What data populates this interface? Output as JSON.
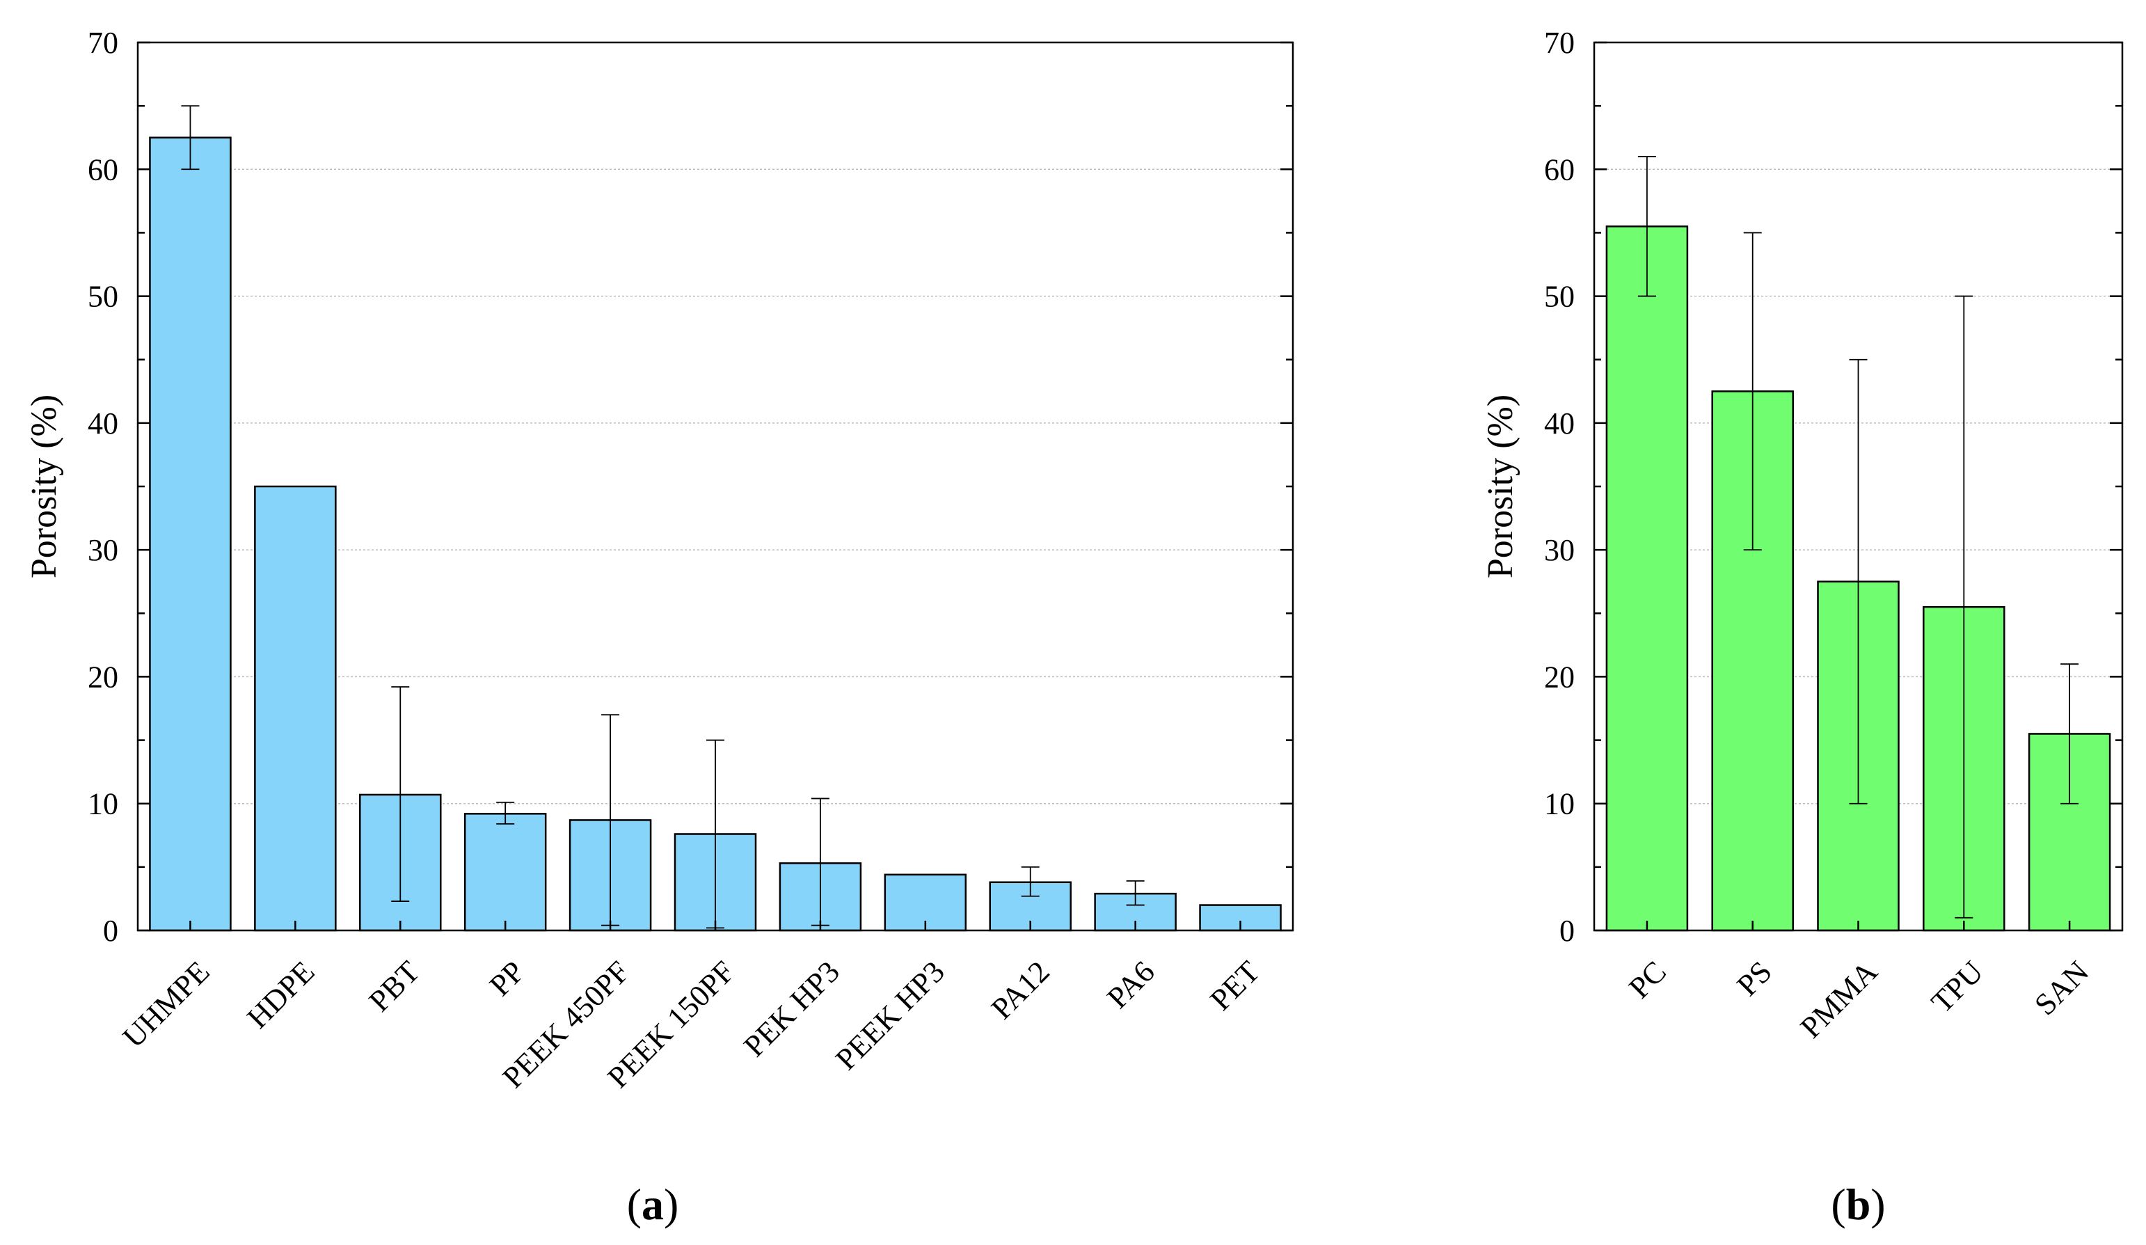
{
  "chart_data": [
    {
      "id": "a",
      "type": "bar",
      "panel_label": "a",
      "ylabel": "Porosity (%)",
      "ylim": [
        0,
        70
      ],
      "yticks": [
        0,
        10,
        20,
        30,
        40,
        50,
        60,
        70
      ],
      "grid": true,
      "color": "#87d4fb",
      "categories": [
        "UHMPE",
        "HDPE",
        "PBT",
        "PP",
        "PEEK 450PF",
        "PEEK 150PF",
        "PEK HP3",
        "PEEK HP3",
        "PA12",
        "PA6",
        "PET"
      ],
      "values": [
        62.5,
        35.0,
        10.7,
        9.2,
        8.7,
        7.6,
        5.3,
        4.4,
        3.8,
        2.9,
        2.0
      ],
      "error_low": [
        60.0,
        null,
        2.3,
        8.4,
        0.4,
        0.2,
        0.4,
        null,
        2.7,
        2.0,
        null
      ],
      "error_high": [
        65.0,
        null,
        19.2,
        10.1,
        17.0,
        15.0,
        10.4,
        null,
        5.0,
        3.9,
        null
      ]
    },
    {
      "id": "b",
      "type": "bar",
      "panel_label": "b",
      "ylabel": "Porosity (%)",
      "ylim": [
        0,
        70
      ],
      "yticks": [
        0,
        10,
        20,
        30,
        40,
        50,
        60,
        70
      ],
      "grid": true,
      "color": "#70fd70",
      "categories": [
        "PC",
        "PS",
        "PMMA",
        "TPU",
        "SAN"
      ],
      "values": [
        55.5,
        42.5,
        27.5,
        25.5,
        15.5
      ],
      "error_low": [
        50.0,
        30.0,
        10.0,
        1.0,
        10.0
      ],
      "error_high": [
        61.0,
        55.0,
        45.0,
        50.0,
        21.0
      ]
    }
  ]
}
